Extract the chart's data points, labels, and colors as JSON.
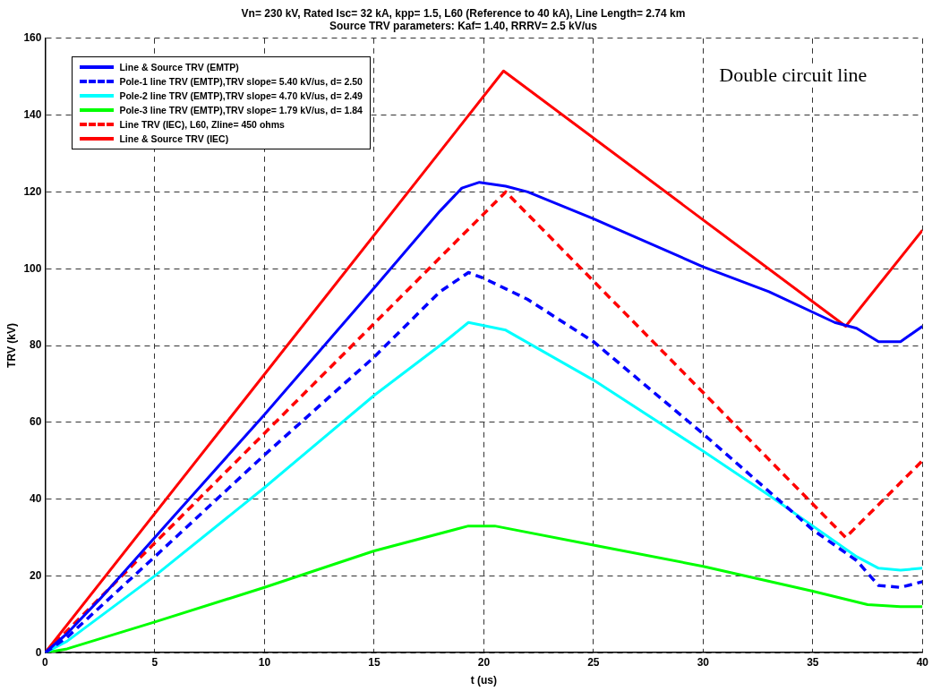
{
  "chart_data": {
    "type": "line",
    "title": "Vn= 230 kV, Rated Isc= 32 kA, kpp= 1.5, L60 (Reference to 40 kA), Line Length= 2.74 km",
    "subtitle": "Source TRV parameters: Kaf= 1.40, RRRV= 2.5 kV/us",
    "xlabel": "t (us)",
    "ylabel": "TRV (kV)",
    "annotations": [
      "Double circuit line"
    ],
    "xlim": [
      0,
      40
    ],
    "ylim": [
      0,
      160
    ],
    "xticks": [
      0,
      5,
      10,
      15,
      20,
      25,
      30,
      35,
      40
    ],
    "yticks": [
      0,
      20,
      40,
      60,
      80,
      100,
      120,
      140,
      160
    ],
    "grid": true,
    "legend": "top left",
    "marker": "none",
    "series": [
      {
        "name": "Line & Source TRV (EMTP)",
        "color": "#0000ff",
        "line_style": "solid",
        "x": [
          0,
          1,
          2.5,
          5,
          10,
          15,
          18,
          19,
          19.8,
          21,
          22,
          25,
          30,
          33,
          36,
          37,
          38,
          39,
          40
        ],
        "values": [
          0,
          5,
          14,
          30,
          62,
          95,
          115,
          121,
          122.5,
          121.5,
          120,
          113,
          100.5,
          94,
          86,
          84.5,
          81,
          81,
          85
        ]
      },
      {
        "name": "Pole-1 line TRV (EMTP),TRV slope= 5.40 kV/us, d= 2.50",
        "color": "#0000ff",
        "line_style": "dashed",
        "x": [
          0,
          1,
          5,
          10,
          15,
          18,
          19.3,
          20,
          22,
          25,
          30,
          33,
          35,
          37,
          38,
          39,
          40
        ],
        "values": [
          0,
          4,
          25,
          51.5,
          77,
          94,
          99,
          97.5,
          92,
          81,
          57,
          42,
          32,
          24,
          17.5,
          17,
          18.5
        ]
      },
      {
        "name": "Pole-2 line TRV (EMTP),TRV slope= 4.70 kV/us, d= 2.49",
        "color": "#00ffff",
        "line_style": "solid",
        "x": [
          0,
          1,
          5,
          10,
          15,
          18,
          19.3,
          21,
          25,
          30,
          33,
          35,
          37,
          38,
          39,
          40
        ],
        "values": [
          0,
          3,
          20,
          43,
          67,
          80,
          86,
          84,
          71,
          52.5,
          41,
          33,
          25,
          22,
          21.5,
          22
        ]
      },
      {
        "name": "Pole-3 line TRV (EMTP),TRV slope= 1.79 kV/us, d= 1.84",
        "color": "#00ff00",
        "line_style": "solid",
        "x": [
          0,
          1,
          5,
          10,
          15,
          19.3,
          20.5,
          25,
          30,
          35,
          37.5,
          39,
          40
        ],
        "values": [
          0,
          1,
          8,
          17,
          26.5,
          33,
          33,
          28,
          22.5,
          16,
          12.5,
          12,
          12
        ]
      },
      {
        "name": "Line TRV (IEC), L60, Zline= 450 ohms",
        "color": "#ff0000",
        "line_style": "dashed",
        "x": [
          0,
          21,
          36.5,
          40
        ],
        "values": [
          0,
          120,
          30,
          50
        ]
      },
      {
        "name": "Line & Source TRV (IEC)",
        "color": "#ff0000",
        "line_style": "solid",
        "x": [
          0,
          20.9,
          36.5,
          40
        ],
        "values": [
          0,
          151.5,
          85,
          110
        ]
      }
    ]
  }
}
